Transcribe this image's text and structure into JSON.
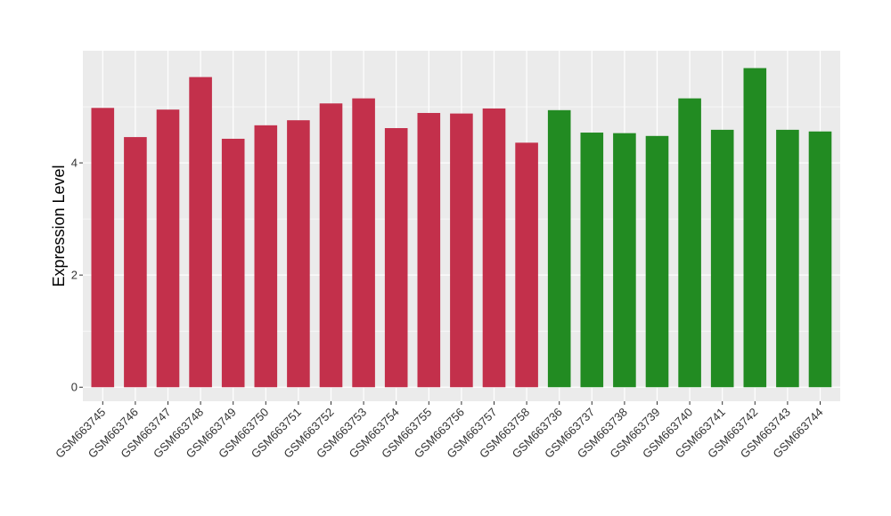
{
  "chart_data": {
    "type": "bar",
    "title": "",
    "xlabel": "",
    "ylabel": "Expression Level",
    "ylim": [
      -0.25,
      6.0
    ],
    "yticks": [
      0,
      2,
      4
    ],
    "grid": true,
    "categories": [
      "GSM663745",
      "GSM663746",
      "GSM663747",
      "GSM663748",
      "GSM663749",
      "GSM663750",
      "GSM663751",
      "GSM663752",
      "GSM663753",
      "GSM663754",
      "GSM663755",
      "GSM663756",
      "GSM663757",
      "GSM663758",
      "GSM663736",
      "GSM663737",
      "GSM663738",
      "GSM663739",
      "GSM663740",
      "GSM663741",
      "GSM663742",
      "GSM663743",
      "GSM663744"
    ],
    "values": [
      4.98,
      4.46,
      4.95,
      5.53,
      4.43,
      4.67,
      4.76,
      5.06,
      5.15,
      4.62,
      4.89,
      4.88,
      4.97,
      4.36,
      4.94,
      4.54,
      4.53,
      4.48,
      5.15,
      4.59,
      5.69,
      4.59,
      4.56
    ],
    "groups": [
      0,
      0,
      0,
      0,
      0,
      0,
      0,
      0,
      0,
      0,
      0,
      0,
      0,
      0,
      1,
      1,
      1,
      1,
      1,
      1,
      1,
      1,
      1
    ],
    "group_colors": [
      "#C3304B",
      "#228B22"
    ],
    "panel_background": "#EBEBEB",
    "gridline_color": "#FFFFFF"
  }
}
